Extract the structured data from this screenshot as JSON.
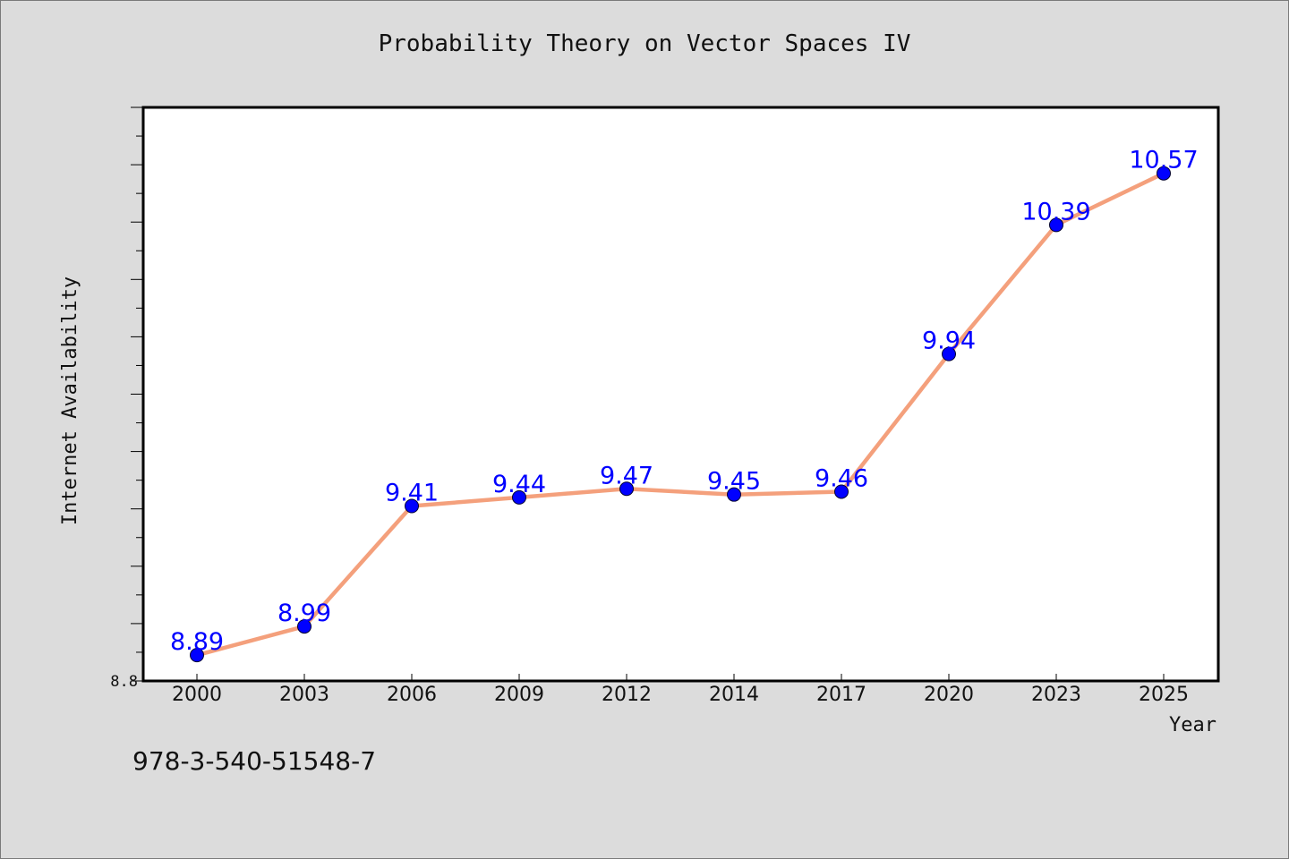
{
  "chart_data": {
    "type": "line",
    "title": "Probability Theory on Vector Spaces IV",
    "xlabel": "Year",
    "ylabel": "Internet Availability",
    "categories": [
      "2000",
      "2003",
      "2006",
      "2009",
      "2012",
      "2014",
      "2017",
      "2020",
      "2023",
      "2025"
    ],
    "values": [
      8.89,
      8.99,
      9.41,
      9.44,
      9.47,
      9.45,
      9.46,
      9.94,
      10.39,
      10.57
    ],
    "value_labels": [
      "8.89",
      "8.99",
      "9.41",
      "9.44",
      "9.47",
      "9.45",
      "9.46",
      "9.94",
      "10.39",
      "10.57"
    ],
    "ylim": [
      8.8,
      10.8
    ],
    "y_tick_labels": [
      "8.8"
    ],
    "grid": false,
    "colors": {
      "line": "#f4a07c",
      "marker": "#0000ff",
      "label": "#0000ff",
      "plot_background": "#ffffff",
      "page_background": "#dcdcdc"
    }
  },
  "footer": {
    "code": "978-3-540-51548-7"
  }
}
